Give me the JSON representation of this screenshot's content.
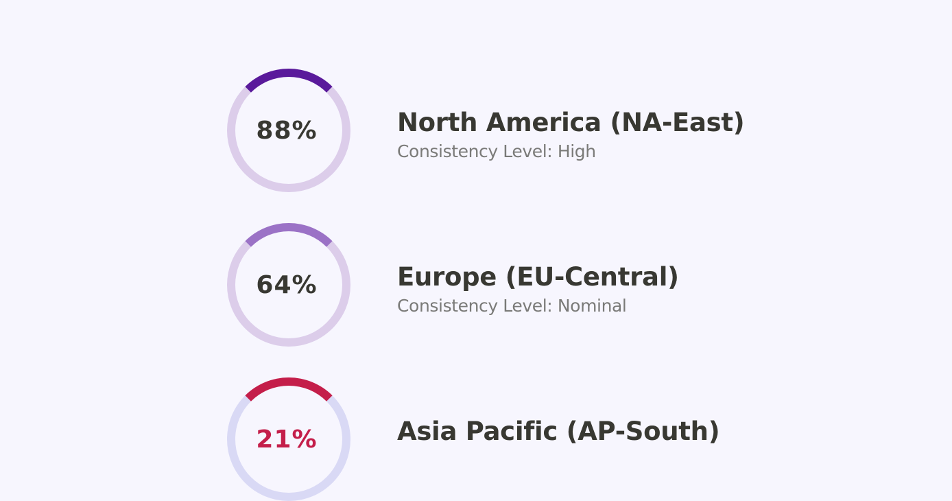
{
  "regions": [
    {
      "name": "North America (NA-East)",
      "subtitle": "Consistency Level: High",
      "percent_label": "88%",
      "value": 88,
      "accent": "#5a1a9b",
      "track": "#dccdea",
      "pct_color": "#383832"
    },
    {
      "name": "Europe (EU-Central)",
      "subtitle": "Consistency Level: Nominal",
      "percent_label": "64%",
      "value": 64,
      "accent": "#9b72c6",
      "track": "#dccdea",
      "pct_color": "#383832"
    },
    {
      "name": "Asia Pacific (AP-South)",
      "subtitle": "",
      "percent_label": "21%",
      "value": 21,
      "accent": "#c41e4a",
      "track": "#d9d9f5",
      "pct_color": "#c41e4a"
    }
  ]
}
